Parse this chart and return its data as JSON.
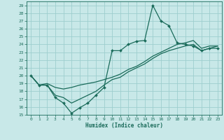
{
  "xlabel": "Humidex (Indice chaleur)",
  "ylabel": "",
  "xlim": [
    -0.5,
    23.5
  ],
  "ylim": [
    15,
    29.5
  ],
  "yticks": [
    15,
    16,
    17,
    18,
    19,
    20,
    21,
    22,
    23,
    24,
    25,
    26,
    27,
    28,
    29
  ],
  "xticks": [
    0,
    1,
    2,
    3,
    4,
    5,
    6,
    7,
    8,
    9,
    10,
    11,
    12,
    13,
    14,
    15,
    16,
    17,
    18,
    19,
    20,
    21,
    22,
    23
  ],
  "bg_color": "#c8e8e8",
  "grid_color": "#9ecece",
  "line_color": "#1a6b5a",
  "lines": [
    {
      "x": [
        0,
        1,
        2,
        3,
        4,
        5,
        6,
        7,
        8,
        9,
        10,
        11,
        12,
        13,
        14,
        15,
        16,
        17,
        18,
        19,
        20,
        21,
        22,
        23
      ],
      "y": [
        20,
        18.8,
        18.8,
        17.2,
        16.5,
        15.2,
        15.9,
        16.5,
        17.5,
        18.5,
        23.2,
        23.2,
        24.0,
        24.4,
        24.5,
        29.0,
        27.0,
        26.4,
        24.2,
        24.0,
        23.8,
        23.2,
        23.5,
        23.5
      ],
      "has_markers": true
    },
    {
      "x": [
        0,
        1,
        2,
        3,
        4,
        5,
        6,
        7,
        8,
        9,
        10,
        11,
        12,
        13,
        14,
        15,
        16,
        17,
        18,
        19,
        20,
        21,
        22,
        23
      ],
      "y": [
        20,
        18.8,
        19.0,
        18.5,
        18.3,
        18.5,
        18.8,
        19.0,
        19.2,
        19.5,
        19.8,
        20.2,
        20.8,
        21.2,
        21.8,
        22.5,
        23.0,
        23.5,
        24.0,
        24.2,
        24.5,
        23.5,
        23.8,
        23.8
      ],
      "has_markers": false
    },
    {
      "x": [
        0,
        1,
        2,
        3,
        4,
        5,
        6,
        7,
        8,
        9,
        10,
        11,
        12,
        13,
        14,
        15,
        16,
        17,
        18,
        19,
        20,
        21,
        22,
        23
      ],
      "y": [
        20,
        18.8,
        18.8,
        17.5,
        17.2,
        16.5,
        17.0,
        17.5,
        18.0,
        18.8,
        19.5,
        19.8,
        20.5,
        21.0,
        21.5,
        22.2,
        22.8,
        23.2,
        23.5,
        23.8,
        24.0,
        23.2,
        23.5,
        23.8
      ],
      "has_markers": false
    }
  ]
}
